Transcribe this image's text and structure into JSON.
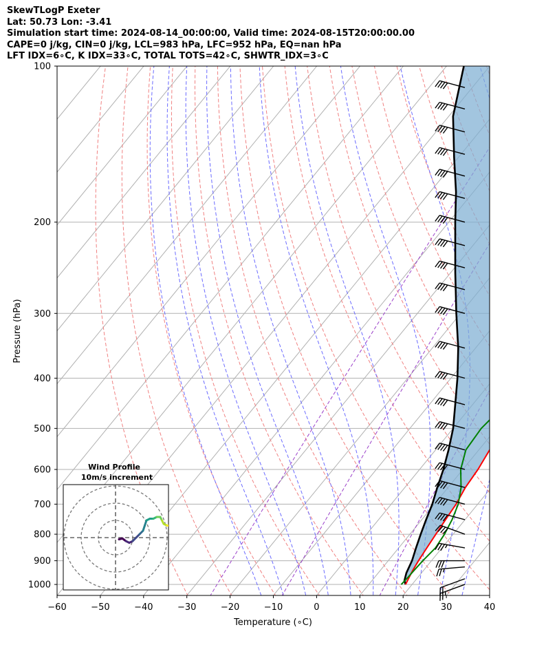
{
  "header": {
    "line1": "SkewTLogP Exeter",
    "line2": "Lat: 50.73   Lon: -3.41",
    "line3": "Simulation start time: 2024-08-14_00:00:00, Valid time: 2024-08-15T20:00:00.00",
    "line4": "CAPE=0 j/kg, CIN=0 j/kg, LCL=983 hPa, LFC=952 hPa, EQ=nan hPa",
    "line5": "LFT IDX=6∘C, K IDX=33∘C, TOTAL TOTS=42∘C, SHWTR_IDX=3∘C"
  },
  "chart_data": {
    "type": "line",
    "xlabel": "Temperature (∘C)",
    "ylabel": "Pressure (hPa)",
    "xlim": [
      -60,
      40
    ],
    "ylim": [
      1050,
      100
    ],
    "yscale": "log",
    "grid": true,
    "x_ticks": [
      "−60",
      "−50",
      "−40",
      "−30",
      "−20",
      "−10",
      "0",
      "10",
      "20",
      "30",
      "40"
    ],
    "y_ticks": [
      "100",
      "200",
      "300",
      "400",
      "500",
      "600",
      "700",
      "800",
      "900",
      "1000"
    ],
    "temperature_profile": {
      "color": "#ff0000",
      "points": [
        [
          18.5,
          1000
        ],
        [
          18,
          970
        ],
        [
          17.5,
          940
        ],
        [
          17,
          900
        ],
        [
          16.5,
          850
        ],
        [
          16,
          800
        ],
        [
          15.5,
          750
        ],
        [
          15,
          700
        ],
        [
          14,
          650
        ],
        [
          13.5,
          600
        ],
        [
          12.5,
          550
        ],
        [
          11.8,
          500
        ],
        [
          11,
          450
        ],
        [
          10,
          400
        ],
        [
          8.5,
          360
        ],
        [
          6,
          330
        ],
        [
          3.5,
          300
        ],
        [
          0,
          270
        ],
        [
          -4,
          245
        ],
        [
          -6.5,
          225
        ],
        [
          -7,
          210
        ],
        [
          -6.5,
          200
        ],
        [
          -5,
          190
        ],
        [
          -4,
          175
        ],
        [
          -4,
          165
        ],
        [
          -4.5,
          155
        ],
        [
          -3.5,
          145
        ],
        [
          -1.5,
          135
        ],
        [
          1.5,
          125
        ],
        [
          4,
          115
        ],
        [
          6,
          108
        ],
        [
          7.5,
          100
        ]
      ]
    },
    "dewpoint_profile": {
      "color": "#008000",
      "points": [
        [
          17.5,
          1000
        ],
        [
          17.7,
          970
        ],
        [
          17.8,
          940
        ],
        [
          18,
          900
        ],
        [
          18.5,
          850
        ],
        [
          18,
          800
        ],
        [
          17,
          750
        ],
        [
          15.5,
          700
        ],
        [
          13,
          650
        ],
        [
          9.5,
          600
        ],
        [
          7,
          550
        ],
        [
          6.5,
          500
        ],
        [
          7.5,
          450
        ],
        [
          7,
          420
        ],
        [
          4.5,
          390
        ],
        [
          2.5,
          360
        ],
        [
          1,
          330
        ],
        [
          -2.5,
          305
        ],
        [
          -7,
          290
        ],
        [
          -8,
          275
        ],
        [
          -7,
          260
        ],
        [
          -8,
          240
        ],
        [
          -9,
          220
        ],
        [
          -10,
          205
        ],
        [
          -14,
          190
        ],
        [
          -19,
          180
        ],
        [
          -21,
          170
        ],
        [
          -21,
          160
        ],
        [
          -20.5,
          150
        ],
        [
          -18,
          140
        ],
        [
          -14,
          130
        ],
        [
          -10,
          120
        ],
        [
          -5,
          110
        ],
        [
          -2,
          100
        ]
      ]
    },
    "parcel_profile": {
      "color": "#000000",
      "points": [
        [
          18.5,
          1000
        ],
        [
          17.5,
          983
        ],
        [
          16.5,
          950
        ],
        [
          15.5,
          900
        ],
        [
          14,
          850
        ],
        [
          12.5,
          800
        ],
        [
          11,
          750
        ],
        [
          9.5,
          700
        ],
        [
          7.5,
          650
        ],
        [
          5.5,
          600
        ],
        [
          3,
          550
        ],
        [
          0,
          500
        ],
        [
          -4,
          450
        ],
        [
          -8.5,
          400
        ],
        [
          -14,
          350
        ],
        [
          -21,
          300
        ],
        [
          -29,
          250
        ],
        [
          -38.5,
          200
        ],
        [
          -44,
          175
        ],
        [
          -51,
          150
        ],
        [
          -59,
          125
        ],
        [
          -66,
          100
        ]
      ]
    },
    "shading": {
      "between": [
        "temperature_profile",
        "parcel_profile"
      ],
      "color": "#7eaed3"
    },
    "isotherms": {
      "values": [
        -150,
        -140,
        -130,
        -120,
        -110,
        -100,
        -90,
        -80,
        -70,
        -60,
        -50,
        -40,
        -30,
        -20,
        -10,
        0,
        10,
        20,
        30,
        40
      ],
      "color": "#b0b0b0"
    },
    "dry_adiabats": {
      "theta_K": [
        240,
        250,
        260,
        270,
        280,
        290,
        300,
        310,
        320,
        330,
        340,
        350,
        360,
        370,
        380,
        390,
        400,
        410,
        420,
        430,
        440
      ],
      "color": "#f08080"
    },
    "moist_adiabats": {
      "start_temps_C": [
        -10,
        -5,
        0,
        5,
        10,
        15,
        20,
        25,
        30,
        35
      ],
      "color": "#6a6aff"
    },
    "mixing_ratio_lines": {
      "values_g_kg": [
        0.5,
        2,
        10
      ],
      "color": "#9a3fc9"
    },
    "wind_barbs": {
      "note_units": "direction deg, speed kt",
      "levels": [
        {
          "p": 1000,
          "dir": 250,
          "spd": 25
        },
        {
          "p": 975,
          "dir": 250,
          "spd": 20
        },
        {
          "p": 925,
          "dir": 265,
          "spd": 25
        },
        {
          "p": 900,
          "dir": 270,
          "spd": 30
        },
        {
          "p": 850,
          "dir": 280,
          "spd": 35
        },
        {
          "p": 800,
          "dir": 290,
          "spd": 40
        },
        {
          "p": 750,
          "dir": 285,
          "spd": 40
        },
        {
          "p": 700,
          "dir": 285,
          "spd": 40
        },
        {
          "p": 650,
          "dir": 285,
          "spd": 40
        },
        {
          "p": 600,
          "dir": 285,
          "spd": 40
        },
        {
          "p": 550,
          "dir": 285,
          "spd": 40
        },
        {
          "p": 500,
          "dir": 285,
          "spd": 40
        },
        {
          "p": 450,
          "dir": 285,
          "spd": 40
        },
        {
          "p": 400,
          "dir": 285,
          "spd": 40
        },
        {
          "p": 350,
          "dir": 285,
          "spd": 40
        },
        {
          "p": 300,
          "dir": 285,
          "spd": 40
        },
        {
          "p": 270,
          "dir": 285,
          "spd": 40
        },
        {
          "p": 245,
          "dir": 285,
          "spd": 40
        },
        {
          "p": 222,
          "dir": 285,
          "spd": 40
        },
        {
          "p": 200,
          "dir": 285,
          "spd": 40
        },
        {
          "p": 180,
          "dir": 285,
          "spd": 40
        },
        {
          "p": 163,
          "dir": 285,
          "spd": 40
        },
        {
          "p": 148,
          "dir": 285,
          "spd": 40
        },
        {
          "p": 134,
          "dir": 285,
          "spd": 40
        },
        {
          "p": 121,
          "dir": 285,
          "spd": 40
        },
        {
          "p": 110,
          "dir": 285,
          "spd": 40
        }
      ]
    },
    "hodograph": {
      "title": "Wind Profile",
      "subtitle": "10m/s increment",
      "rings_m_s": [
        10,
        20,
        30
      ],
      "colormap": "viridis",
      "points": [
        [
          2,
          -1
        ],
        [
          4,
          -0.5
        ],
        [
          6,
          -2
        ],
        [
          8,
          -3
        ],
        [
          10,
          -2
        ],
        [
          12,
          0
        ],
        [
          14,
          2
        ],
        [
          16,
          4
        ],
        [
          17,
          7
        ],
        [
          18,
          10
        ],
        [
          20,
          11
        ],
        [
          22,
          11
        ],
        [
          24,
          12
        ],
        [
          26,
          12
        ],
        [
          27,
          10
        ],
        [
          28,
          8
        ],
        [
          30,
          7
        ],
        [
          32,
          7
        ]
      ]
    }
  }
}
